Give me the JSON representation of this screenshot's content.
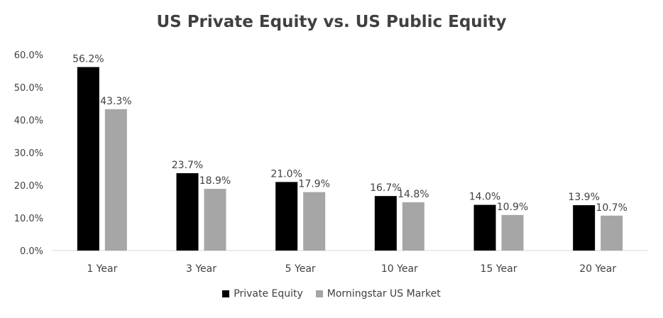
{
  "chart_data": {
    "type": "bar",
    "title": "US Private Equity vs. US Public Equity",
    "xlabel": "",
    "ylabel": "",
    "categories": [
      "1 Year",
      "3 Year",
      "5 Year",
      "10 Year",
      "15 Year",
      "20 Year"
    ],
    "series": [
      {
        "name": "Private Equity",
        "color": "#000000",
        "values": [
          56.2,
          23.7,
          21.0,
          16.7,
          14.0,
          13.9
        ],
        "labels": [
          "56.2%",
          "23.7%",
          "21.0%",
          "16.7%",
          "14.0%",
          "13.9%"
        ]
      },
      {
        "name": "Morningstar US Market",
        "color": "#a6a6a6",
        "values": [
          43.3,
          18.9,
          17.9,
          14.8,
          10.9,
          10.7
        ],
        "labels": [
          "43.3%",
          "18.9%",
          "17.9%",
          "14.8%",
          "10.9%",
          "10.7%"
        ]
      }
    ],
    "ylim": [
      0,
      60
    ],
    "yticks": [
      "0.0%",
      "10.0%",
      "20.0%",
      "30.0%",
      "40.0%",
      "50.0%",
      "60.0%"
    ],
    "grid": false,
    "legend_position": "bottom"
  }
}
